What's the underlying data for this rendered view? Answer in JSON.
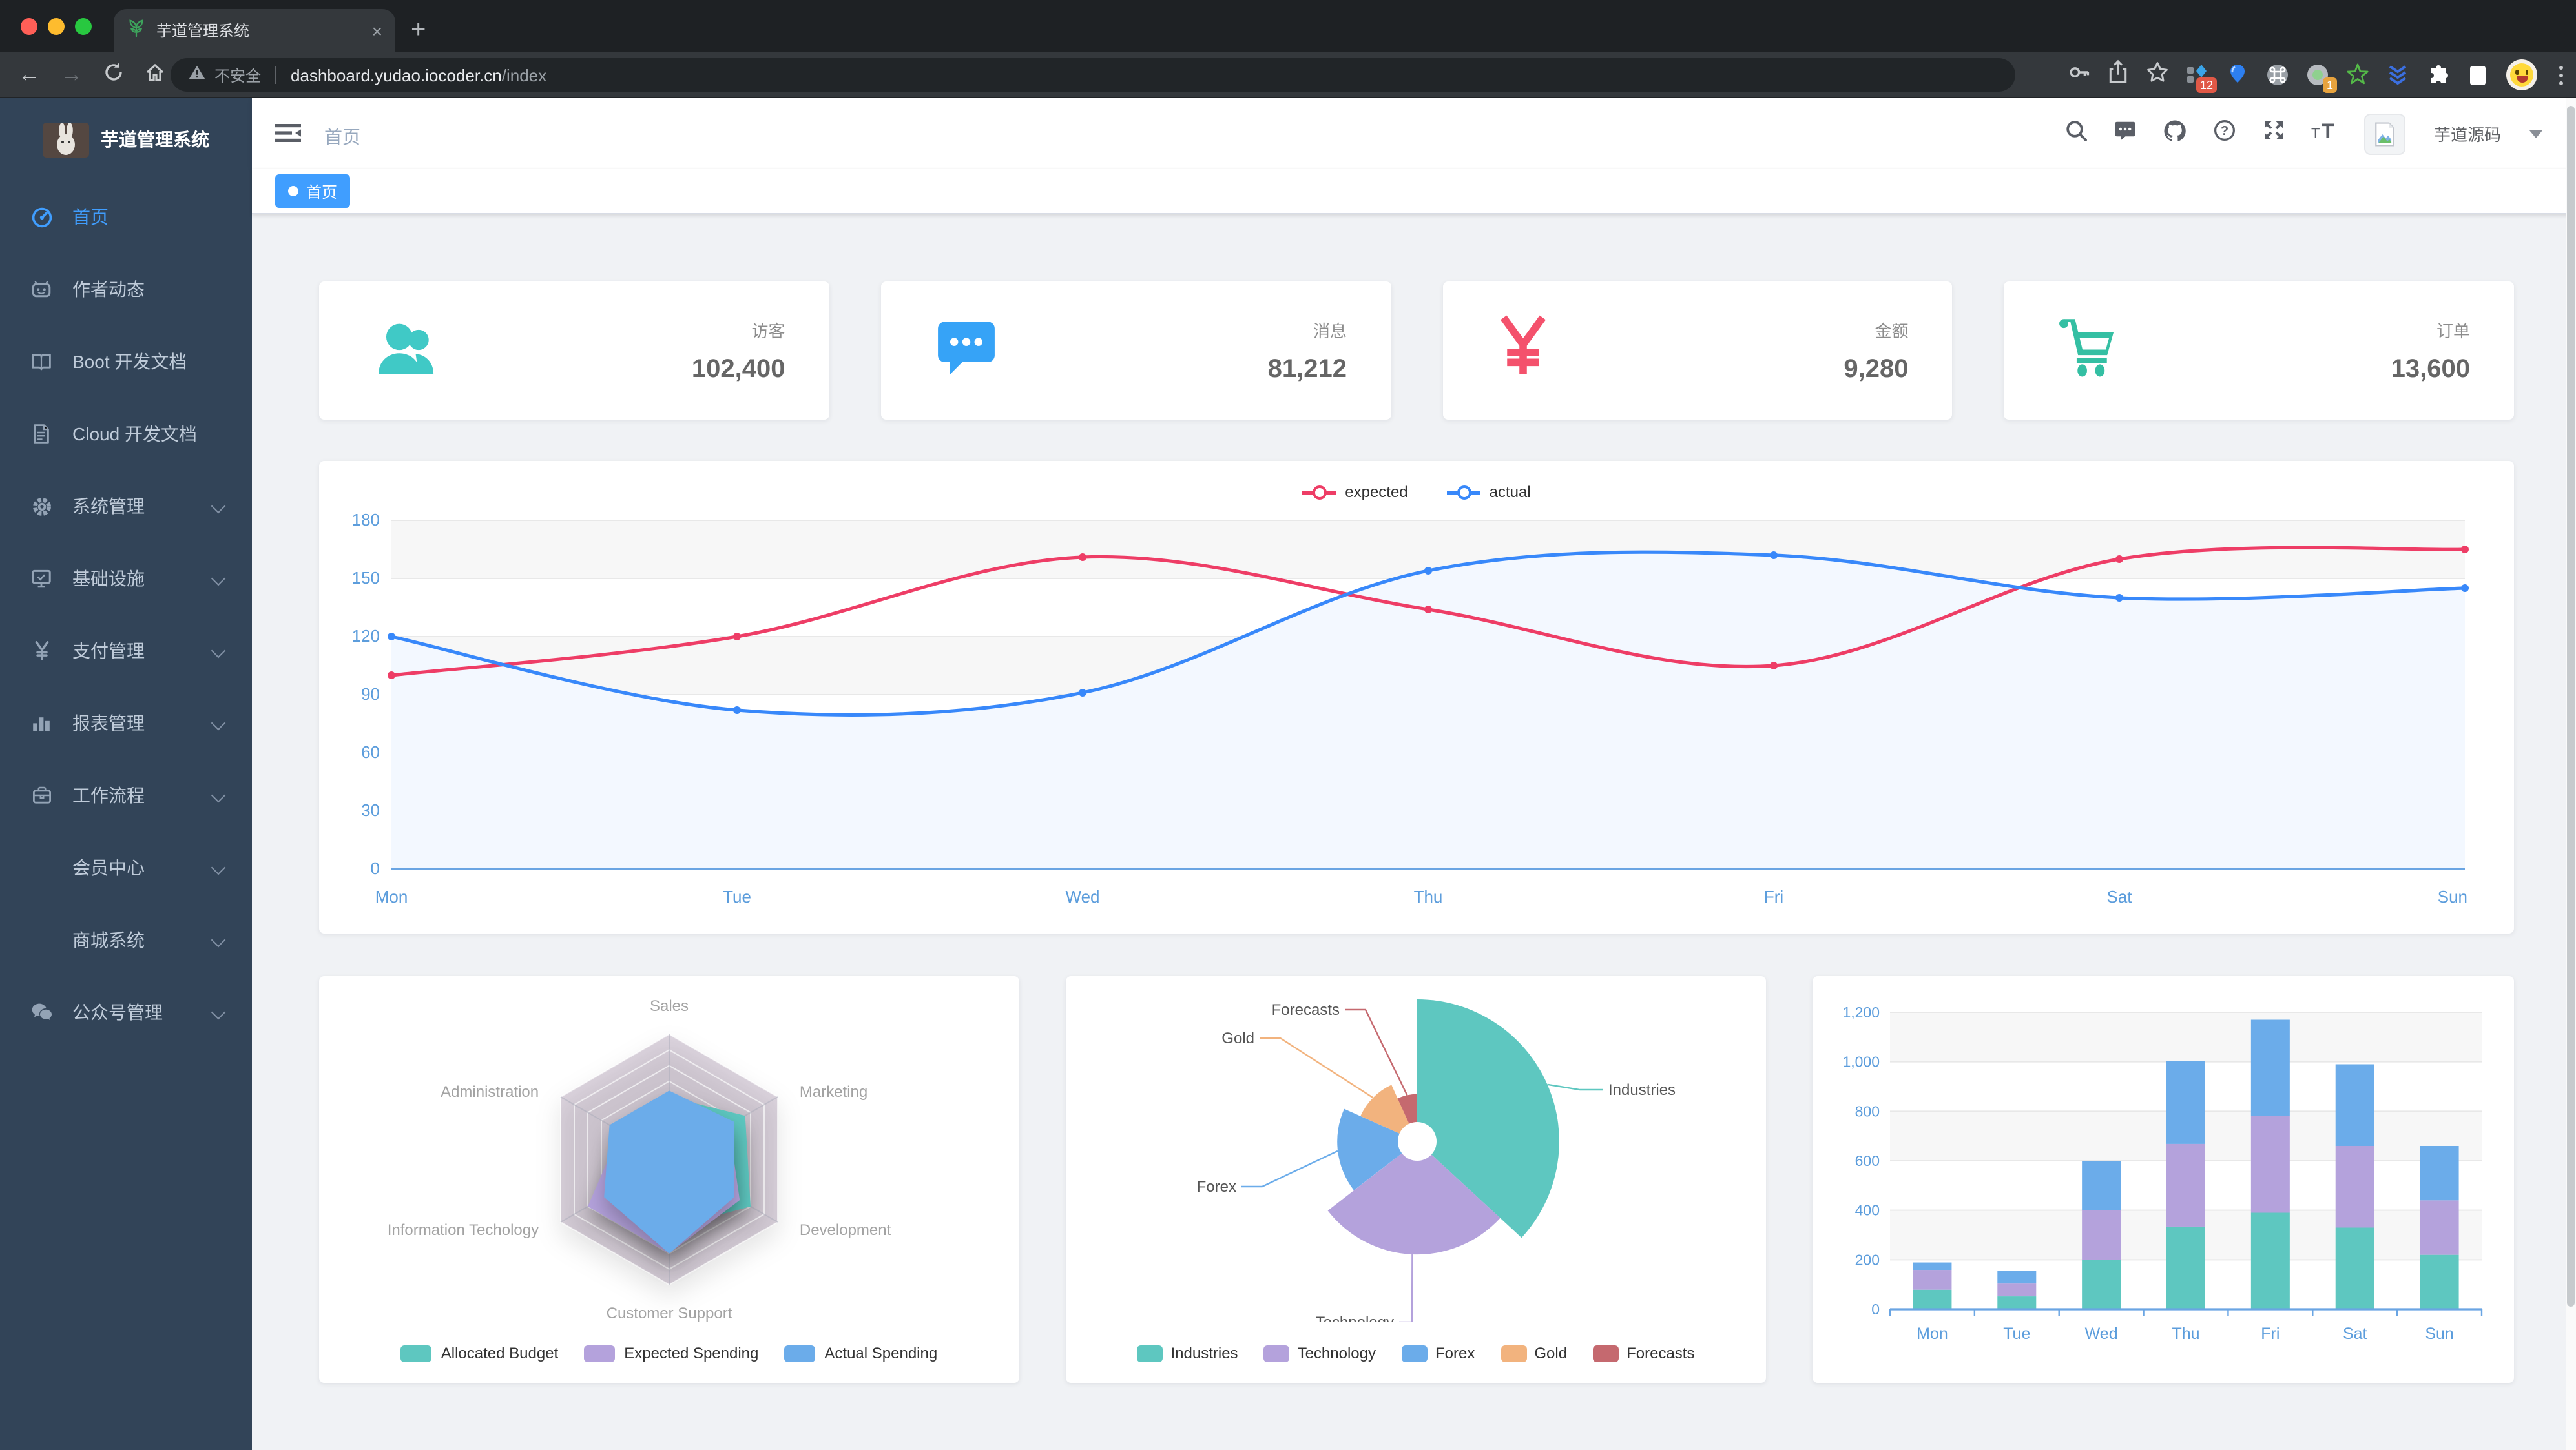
{
  "browser": {
    "tab_title": "芋道管理系统",
    "new_tab_label": "+",
    "close_tab_label": "×",
    "security_text": "不安全",
    "url_host": "dashboard.yudao.iocoder.cn",
    "url_path": "/index",
    "toolbar_icons": [
      "back-icon",
      "forward-icon",
      "reload-icon",
      "home-icon"
    ],
    "action_icons": [
      "key-icon",
      "share-icon",
      "star-icon"
    ],
    "extensions": [
      {
        "icon": "kite-extension-icon",
        "badge": "12"
      },
      {
        "icon": "balloon-extension-icon",
        "badge": ""
      },
      {
        "icon": "command-extension-icon",
        "badge": ""
      },
      {
        "icon": "target-extension-icon",
        "badge": "1"
      },
      {
        "icon": "green-star-extension-icon",
        "badge": ""
      },
      {
        "icon": "chevrons-extension-icon",
        "badge": ""
      },
      {
        "icon": "puzzle-extension-icon",
        "badge": ""
      },
      {
        "icon": "reader-extension-icon",
        "badge": ""
      }
    ]
  },
  "sidebar": {
    "title": "芋道管理系统",
    "items": [
      {
        "label": "首页",
        "icon": "dashboard-icon",
        "active": true,
        "expandable": false
      },
      {
        "label": "作者动态",
        "icon": "face-icon",
        "active": false,
        "expandable": false
      },
      {
        "label": "Boot 开发文档",
        "icon": "book-icon",
        "active": false,
        "expandable": false
      },
      {
        "label": "Cloud 开发文档",
        "icon": "document-icon",
        "active": false,
        "expandable": false
      },
      {
        "label": "系统管理",
        "icon": "gear-icon",
        "active": false,
        "expandable": true
      },
      {
        "label": "基础设施",
        "icon": "monitor-icon",
        "active": false,
        "expandable": true
      },
      {
        "label": "支付管理",
        "icon": "yen-icon",
        "active": false,
        "expandable": true
      },
      {
        "label": "报表管理",
        "icon": "bar-chart-icon",
        "active": false,
        "expandable": true
      },
      {
        "label": "工作流程",
        "icon": "briefcase-icon",
        "active": false,
        "expandable": true
      },
      {
        "label": "会员中心",
        "icon": "",
        "active": false,
        "expandable": true
      },
      {
        "label": "商城系统",
        "icon": "",
        "active": false,
        "expandable": true
      },
      {
        "label": "公众号管理",
        "icon": "wechat-icon",
        "active": false,
        "expandable": true
      }
    ]
  },
  "navbar": {
    "breadcrumb": "首页",
    "icons": [
      "search-icon",
      "message-icon",
      "github-icon",
      "help-icon",
      "fullscreen-icon",
      "font-size-icon"
    ],
    "username": "芋道源码"
  },
  "tags": [
    {
      "label": "首页",
      "active": true
    }
  ],
  "stats": [
    {
      "label": "访客",
      "value": "102,400",
      "icon": "people-icon",
      "color": "#40c9c6"
    },
    {
      "label": "消息",
      "value": "81,212",
      "icon": "message-bubble-icon",
      "color": "#36a3f7"
    },
    {
      "label": "金额",
      "value": "9,280",
      "icon": "yen-icon",
      "color": "#f4516c"
    },
    {
      "label": "订单",
      "value": "13,600",
      "icon": "cart-icon",
      "color": "#34bfa3"
    }
  ],
  "chart_data": [
    {
      "type": "line",
      "categories": [
        "Mon",
        "Tue",
        "Wed",
        "Thu",
        "Fri",
        "Sat",
        "Sun"
      ],
      "series": [
        {
          "name": "expected",
          "color": "#ee3d66",
          "values": [
            100,
            120,
            161,
            134,
            105,
            160,
            165
          ]
        },
        {
          "name": "actual",
          "color": "#3888fa",
          "area": "#f3f8ff",
          "values": [
            120,
            82,
            91,
            154,
            162,
            140,
            145
          ]
        }
      ],
      "ylim": [
        0,
        180
      ],
      "ytick_step": 30,
      "grid": true,
      "legend_position": "top",
      "axis_label_color": "#5c9ddc"
    },
    {
      "type": "radar",
      "indicators": [
        {
          "name": "Sales",
          "max": 10000
        },
        {
          "name": "Administration",
          "max": 20000
        },
        {
          "name": "Information Techology",
          "max": 20000
        },
        {
          "name": "Customer Support",
          "max": 20000
        },
        {
          "name": "Development",
          "max": 20000
        },
        {
          "name": "Marketing",
          "max": 20000
        }
      ],
      "series": [
        {
          "name": "Allocated Budget",
          "color": "#5ec7c0",
          "values": [
            5000,
            7000,
            12000,
            11000,
            15000,
            14000
          ]
        },
        {
          "name": "Expected Spending",
          "color": "#b4a2dc",
          "values": [
            4000,
            9000,
            15000,
            15000,
            13000,
            11000
          ]
        },
        {
          "name": "Actual Spending",
          "color": "#6bacea",
          "values": [
            5500,
            11000,
            12000,
            15000,
            12000,
            12000
          ]
        }
      ],
      "legend_position": "bottom"
    },
    {
      "type": "pie",
      "rose_type": "radius",
      "items": [
        {
          "name": "Industries",
          "value": 320,
          "color": "#5ec7c0"
        },
        {
          "name": "Technology",
          "value": 240,
          "color": "#b4a2dc"
        },
        {
          "name": "Forex",
          "value": 149,
          "color": "#6bacea"
        },
        {
          "name": "Gold",
          "value": 100,
          "color": "#f2b37e"
        },
        {
          "name": "Forecasts",
          "value": 59,
          "color": "#c5696f"
        }
      ],
      "legend_position": "bottom"
    },
    {
      "type": "bar",
      "stacked": true,
      "categories": [
        "Mon",
        "Tue",
        "Wed",
        "Thu",
        "Fri",
        "Sat",
        "Sun"
      ],
      "series": [
        {
          "name": "",
          "color": "#5ec7c0",
          "values": [
            79,
            52,
            200,
            334,
            390,
            330,
            220
          ]
        },
        {
          "name": "",
          "color": "#b4a2dc",
          "values": [
            80,
            52,
            200,
            334,
            390,
            330,
            220
          ]
        },
        {
          "name": "",
          "color": "#6bacea",
          "values": [
            30,
            52,
            200,
            334,
            390,
            330,
            220
          ]
        }
      ],
      "ylim": [
        0,
        1200
      ],
      "ytick_step": 200,
      "grid": true,
      "axis_label_color": "#5c9ddc"
    }
  ]
}
